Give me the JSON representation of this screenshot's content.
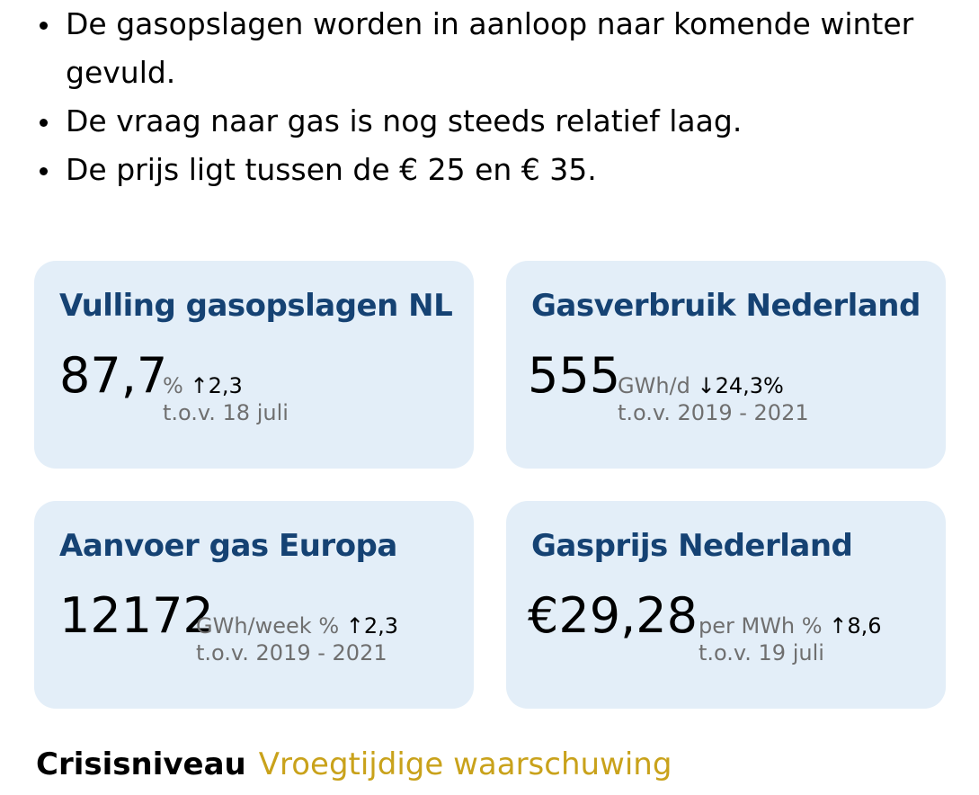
{
  "bullets": [
    "De gasopslagen worden in aanloop naar komende winter gevuld.",
    "De vraag naar gas is nog steeds relatief laag.",
    "De prijs ligt tussen de € 25 en € 35."
  ],
  "cards": [
    {
      "title": "Vulling gasopslagen NL",
      "value": "87,7",
      "unit": "%",
      "arrow": "↑",
      "change": "2,3",
      "compare": "t.o.v. 18 juli"
    },
    {
      "title": "Gasverbruik Nederland",
      "value": "555",
      "unit": "GWh/d",
      "arrow": "↓",
      "change": "24,3%",
      "compare": "t.o.v. 2019 - 2021"
    },
    {
      "title": "Aanvoer gas Europa",
      "value": "12172",
      "unit": "GWh/week %",
      "arrow": "↑",
      "change": "2,3",
      "compare": "t.o.v. 2019 - 2021"
    },
    {
      "title": "Gasprijs Nederland",
      "value": "€29,28",
      "unit": "per MWh %",
      "arrow": "↑",
      "change": "8,6",
      "compare": "t.o.v. 19 juli"
    }
  ],
  "crisis": {
    "label": "Crisisniveau",
    "level": "Vroegtijdige waarschuwing"
  },
  "colors": {
    "card_bg": "#e3eef8",
    "title": "#154273",
    "level": "#c9a21b"
  }
}
